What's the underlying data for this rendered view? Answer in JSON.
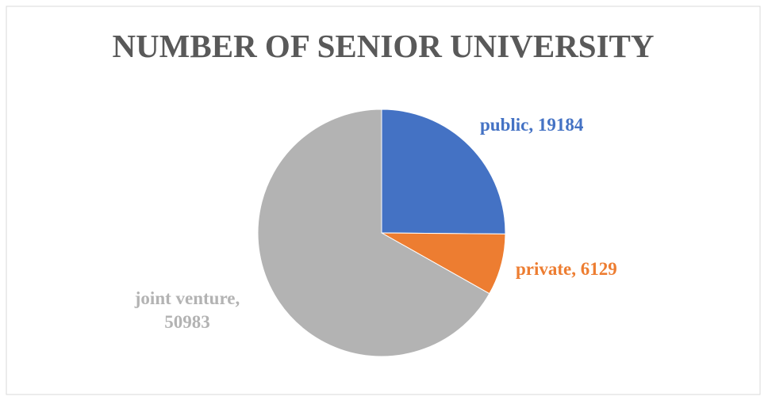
{
  "chart_data": {
    "type": "pie",
    "title": "NUMBER OF SENIOR UNIVERSITY",
    "categories": [
      "public",
      "private",
      "joint venture"
    ],
    "values": [
      19184,
      6129,
      50983
    ],
    "colors": [
      "#4472c4",
      "#ed7d31",
      "#b3b3b3"
    ],
    "label_separator": ","
  }
}
